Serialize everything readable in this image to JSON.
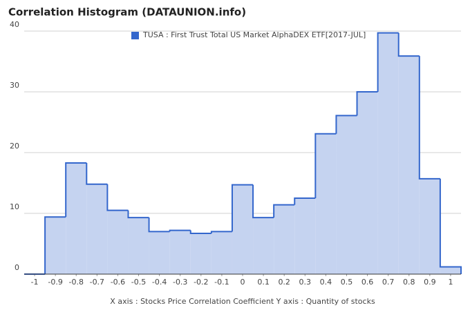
{
  "chart_data": {
    "type": "histogram",
    "title": "Correlation Histogram (DATAUNION.info)",
    "caption": "X axis : Stocks Price Correlation Coefficient  Y axis : Quantity of stocks",
    "series": [
      {
        "name": "TUSA : First Trust Total US Market AlphaDEX ETF[2017-JUL]",
        "color": "#3366cc",
        "values": [
          0,
          9.4,
          18.3,
          14.8,
          10.5,
          9.3,
          7,
          7.2,
          6.7,
          7,
          14.7,
          9.3,
          11.4,
          12.5,
          23.1,
          26.1,
          30,
          39.7,
          35.9,
          15.7,
          1.2
        ]
      }
    ],
    "bins": [
      -1.05,
      -0.95,
      -0.85,
      -0.75,
      -0.65,
      -0.55,
      -0.45,
      -0.35,
      -0.25,
      -0.15,
      -0.05,
      0.05,
      0.15,
      0.25,
      0.35,
      0.45,
      0.55,
      0.65,
      0.75,
      0.85,
      0.95,
      1.05
    ],
    "xlim": [
      -1.05,
      1.05
    ],
    "xticks": [
      -1,
      -0.9,
      -0.8,
      -0.7,
      -0.6,
      -0.5,
      -0.4,
      -0.3,
      -0.2,
      -0.1,
      0,
      0.1,
      0.2,
      0.3,
      0.4,
      0.5,
      0.6,
      0.7,
      0.8,
      0.9,
      1
    ],
    "ylim": [
      0,
      40
    ],
    "yticks": [
      0,
      10,
      20,
      30,
      40
    ],
    "grid": true,
    "fill": "#c5d3f0",
    "legend": "top"
  }
}
